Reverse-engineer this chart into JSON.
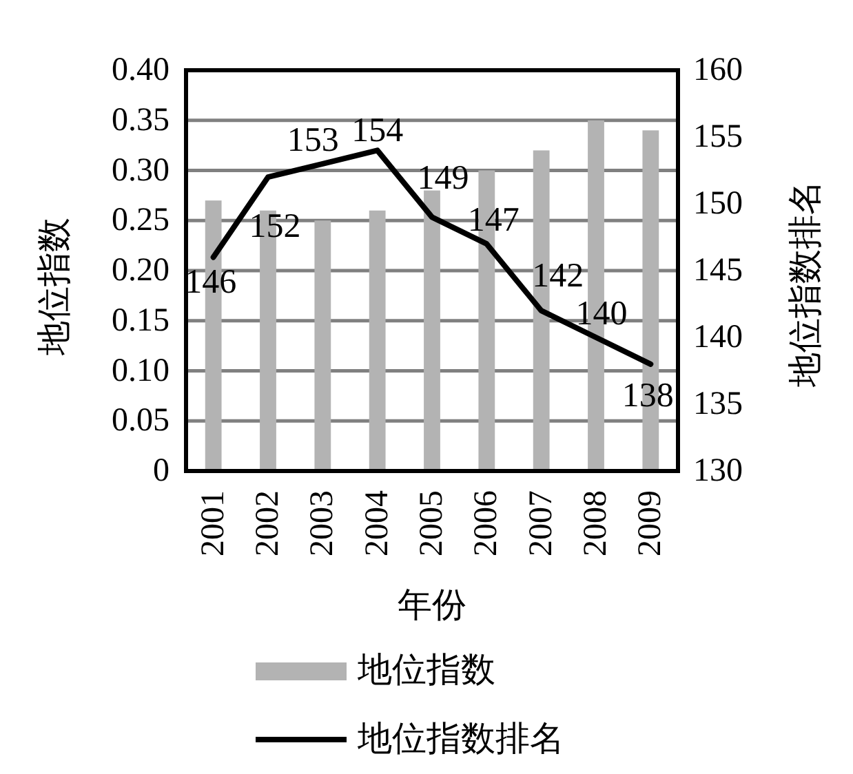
{
  "chart_data": {
    "type": "bar",
    "categories": [
      "2001",
      "2002",
      "2003",
      "2004",
      "2005",
      "2006",
      "2007",
      "2008",
      "2009"
    ],
    "xlabel": "年份",
    "ylabel": "地位指数",
    "y2label": "地位指数排名",
    "series": [
      {
        "name": "地位指数",
        "color": "#b3b3b3",
        "values": [
          0.27,
          0.26,
          0.25,
          0.26,
          0.28,
          0.3,
          0.32,
          0.35,
          0.34
        ]
      },
      {
        "name": "地位指数排名",
        "type": "line",
        "axis": "y2",
        "color": "#000000",
        "values": [
          146,
          152,
          153,
          154,
          149,
          147,
          142,
          140,
          138
        ],
        "value_labels": [
          "146",
          "152",
          "153",
          "154",
          "149",
          "147",
          "142",
          "140",
          "138"
        ]
      }
    ],
    "ylim": [
      0,
      0.4
    ],
    "yticks": [
      0,
      0.05,
      {
        "value": 0.1,
        "label": "0.10"
      },
      0.15,
      {
        "value": 0.2,
        "label": "0.20"
      },
      0.25,
      {
        "value": 0.3,
        "label": "0.30"
      },
      0.35,
      {
        "value": 0.4,
        "label": "0.40"
      }
    ],
    "y2lim": [
      130,
      160
    ],
    "y2ticks": [
      130,
      135,
      140,
      145,
      150,
      155,
      160
    ],
    "grid": "y",
    "legend": "bottom"
  }
}
